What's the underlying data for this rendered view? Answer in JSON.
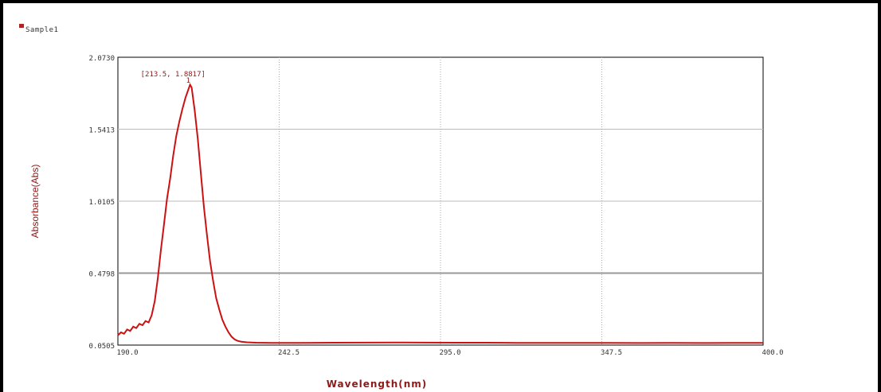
{
  "legend": {
    "series_name": "Sample1",
    "color": "#b22222"
  },
  "chart_data": {
    "type": "line",
    "xlabel": "Wavelength(nm)",
    "ylabel": "Absorbance(Abs)",
    "xlim": [
      190.0,
      400.0
    ],
    "ylim": [
      0.0505,
      2.073
    ],
    "x_ticks": [
      "190.0",
      "242.5",
      "295.0",
      "347.5",
      "400.0"
    ],
    "y_ticks": [
      "0.0505",
      "0.4798",
      "1.0105",
      "1.5413",
      "2.0730"
    ],
    "grid": true,
    "annotation": {
      "label": "[213.5, 1.8817]",
      "marker": "1",
      "x": 213.5,
      "y": 1.8817
    },
    "series": [
      {
        "name": "Sample1",
        "color": "#cc1111",
        "points": [
          [
            190.0,
            0.12
          ],
          [
            191.0,
            0.14
          ],
          [
            192.0,
            0.13
          ],
          [
            193.0,
            0.16
          ],
          [
            194.0,
            0.15
          ],
          [
            195.0,
            0.18
          ],
          [
            196.0,
            0.17
          ],
          [
            197.0,
            0.2
          ],
          [
            198.0,
            0.19
          ],
          [
            199.0,
            0.22
          ],
          [
            200.0,
            0.21
          ],
          [
            201.0,
            0.26
          ],
          [
            202.0,
            0.36
          ],
          [
            203.0,
            0.52
          ],
          [
            204.0,
            0.72
          ],
          [
            205.0,
            0.9
          ],
          [
            206.0,
            1.08
          ],
          [
            207.0,
            1.22
          ],
          [
            208.0,
            1.38
          ],
          [
            209.0,
            1.52
          ],
          [
            210.0,
            1.62
          ],
          [
            211.0,
            1.71
          ],
          [
            212.0,
            1.79
          ],
          [
            213.0,
            1.85
          ],
          [
            213.5,
            1.88
          ],
          [
            214.0,
            1.86
          ],
          [
            215.0,
            1.7
          ],
          [
            216.0,
            1.5
          ],
          [
            217.0,
            1.26
          ],
          [
            218.0,
            1.02
          ],
          [
            219.0,
            0.82
          ],
          [
            220.0,
            0.64
          ],
          [
            221.0,
            0.5
          ],
          [
            222.0,
            0.38
          ],
          [
            223.0,
            0.3
          ],
          [
            224.0,
            0.23
          ],
          [
            225.0,
            0.18
          ],
          [
            226.0,
            0.14
          ],
          [
            227.0,
            0.11
          ],
          [
            228.0,
            0.09
          ],
          [
            229.0,
            0.08
          ],
          [
            230.0,
            0.075
          ],
          [
            232.0,
            0.07
          ],
          [
            235.0,
            0.067
          ],
          [
            240.0,
            0.066
          ],
          [
            250.0,
            0.066
          ],
          [
            260.0,
            0.067
          ],
          [
            270.0,
            0.068
          ],
          [
            280.0,
            0.069
          ],
          [
            290.0,
            0.068
          ],
          [
            300.0,
            0.067
          ],
          [
            310.0,
            0.067
          ],
          [
            320.0,
            0.066
          ],
          [
            330.0,
            0.066
          ],
          [
            340.0,
            0.066
          ],
          [
            350.0,
            0.066
          ],
          [
            360.0,
            0.065
          ],
          [
            370.0,
            0.066
          ],
          [
            380.0,
            0.065
          ],
          [
            390.0,
            0.066
          ],
          [
            400.0,
            0.066
          ]
        ]
      }
    ]
  }
}
